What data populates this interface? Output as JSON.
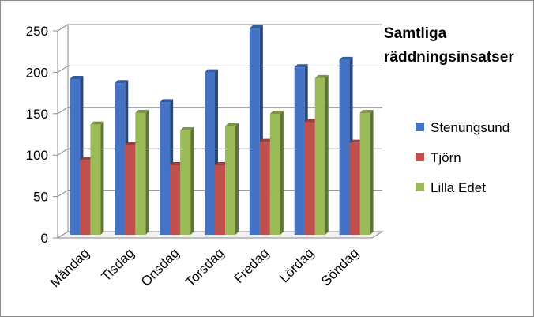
{
  "chart_data": {
    "type": "bar",
    "title_lines": [
      "Samtliga",
      "räddningsinsatser"
    ],
    "categories": [
      "Måndag",
      "Tisdag",
      "Onsdag",
      "Torsdag",
      "Fredag",
      "Lördag",
      "Söndag"
    ],
    "series": [
      {
        "name": "Stenungsund",
        "color": "#4472C4",
        "values": [
          188,
          183,
          160,
          196,
          249,
          202,
          211
        ]
      },
      {
        "name": "Tjörn",
        "color": "#C0504D",
        "values": [
          90,
          108,
          84,
          84,
          112,
          136,
          111
        ]
      },
      {
        "name": "Lilla Edet",
        "color": "#9BBB59",
        "values": [
          133,
          147,
          126,
          131,
          146,
          189,
          147
        ]
      }
    ],
    "ylim": [
      0,
      250
    ],
    "yticks": [
      "0",
      "50",
      "100",
      "150",
      "200",
      "250"
    ],
    "grid": true,
    "legend_position": "right",
    "style": "3d-clustered-column"
  }
}
